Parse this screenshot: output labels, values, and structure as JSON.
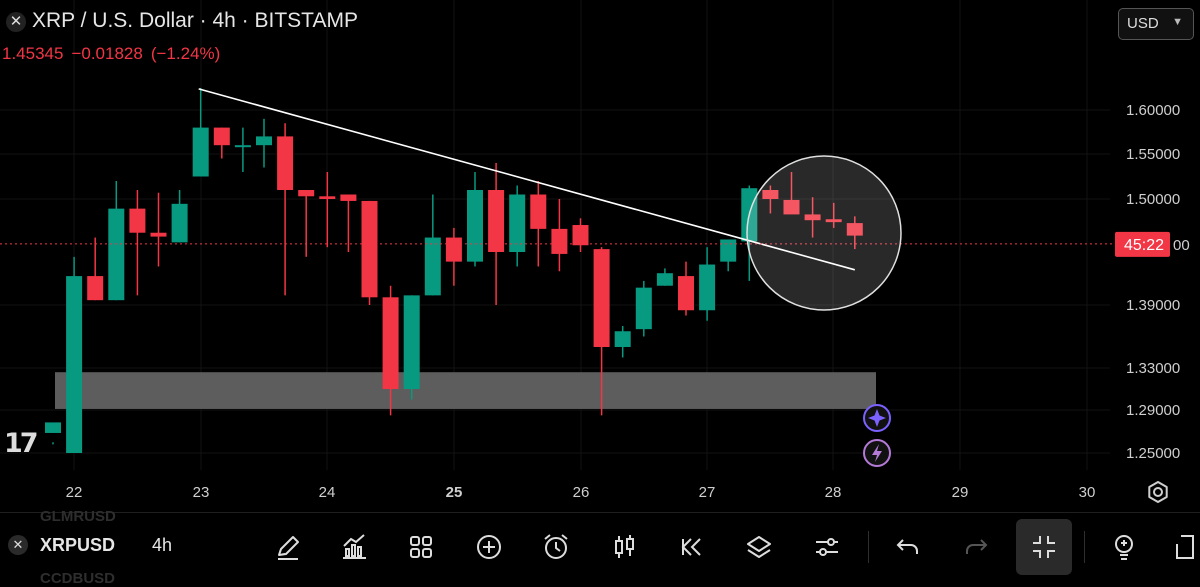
{
  "header": {
    "title": "XRP / U.S. Dollar · 4h · BITSTAMP",
    "price": "1.45345",
    "change": "−0.01828",
    "change_pct": "(−1.24%)",
    "currency": "USD"
  },
  "chart_data": {
    "type": "candlestick",
    "y_ticks": [
      "1.60000",
      "1.55000",
      "1.50000",
      "1.39000",
      "1.33000",
      "1.29000",
      "1.25000"
    ],
    "x_ticks": [
      "22",
      "23",
      "24",
      "25",
      "26",
      "27",
      "28",
      "29",
      "30"
    ],
    "current_label": "45:22",
    "current_price": 1.45345,
    "candles": [
      {
        "o": 1.233,
        "h": 1.26,
        "l": 1.22,
        "c": 1.245
      },
      {
        "o": 1.25,
        "h": 1.44,
        "l": 1.25,
        "c": 1.42
      },
      {
        "o": 1.42,
        "h": 1.46,
        "l": 1.395,
        "c": 1.395
      },
      {
        "o": 1.395,
        "h": 1.52,
        "l": 1.395,
        "c": 1.49
      },
      {
        "o": 1.49,
        "h": 1.51,
        "l": 1.4,
        "c": 1.465
      },
      {
        "o": 1.465,
        "h": 1.507,
        "l": 1.43,
        "c": 1.461
      },
      {
        "o": 1.455,
        "h": 1.51,
        "l": 1.455,
        "c": 1.495
      },
      {
        "o": 1.525,
        "h": 1.625,
        "l": 1.525,
        "c": 1.58
      },
      {
        "o": 1.58,
        "h": 1.58,
        "l": 1.545,
        "c": 1.56
      },
      {
        "o": 1.56,
        "h": 1.58,
        "l": 1.53,
        "c": 1.56
      },
      {
        "o": 1.56,
        "h": 1.59,
        "l": 1.535,
        "c": 1.57
      },
      {
        "o": 1.57,
        "h": 1.585,
        "l": 1.4,
        "c": 1.51
      },
      {
        "o": 1.51,
        "h": 1.51,
        "l": 1.44,
        "c": 1.503
      },
      {
        "o": 1.503,
        "h": 1.53,
        "l": 1.45,
        "c": 1.5
      },
      {
        "o": 1.505,
        "h": 1.505,
        "l": 1.445,
        "c": 1.498
      },
      {
        "o": 1.498,
        "h": 1.498,
        "l": 1.39,
        "c": 1.398
      },
      {
        "o": 1.398,
        "h": 1.41,
        "l": 1.285,
        "c": 1.31
      },
      {
        "o": 1.31,
        "h": 1.4,
        "l": 1.3,
        "c": 1.4
      },
      {
        "o": 1.4,
        "h": 1.505,
        "l": 1.4,
        "c": 1.46
      },
      {
        "o": 1.46,
        "h": 1.47,
        "l": 1.41,
        "c": 1.435
      },
      {
        "o": 1.435,
        "h": 1.53,
        "l": 1.43,
        "c": 1.51
      },
      {
        "o": 1.51,
        "h": 1.54,
        "l": 1.39,
        "c": 1.445
      },
      {
        "o": 1.445,
        "h": 1.515,
        "l": 1.43,
        "c": 1.505
      },
      {
        "o": 1.505,
        "h": 1.52,
        "l": 1.43,
        "c": 1.469
      },
      {
        "o": 1.469,
        "h": 1.5,
        "l": 1.425,
        "c": 1.443
      },
      {
        "o": 1.473,
        "h": 1.48,
        "l": 1.445,
        "c": 1.452
      },
      {
        "o": 1.448,
        "h": 1.45,
        "l": 1.285,
        "c": 1.35
      },
      {
        "o": 1.35,
        "h": 1.37,
        "l": 1.34,
        "c": 1.365
      },
      {
        "o": 1.367,
        "h": 1.415,
        "l": 1.36,
        "c": 1.408
      },
      {
        "o": 1.41,
        "h": 1.428,
        "l": 1.41,
        "c": 1.423
      },
      {
        "o": 1.42,
        "h": 1.435,
        "l": 1.38,
        "c": 1.385
      },
      {
        "o": 1.385,
        "h": 1.45,
        "l": 1.375,
        "c": 1.432
      },
      {
        "o": 1.435,
        "h": 1.458,
        "l": 1.425,
        "c": 1.458
      },
      {
        "o": 1.456,
        "h": 1.515,
        "l": 1.415,
        "c": 1.512
      },
      {
        "o": 1.51,
        "h": 1.515,
        "l": 1.485,
        "c": 1.5
      },
      {
        "o": 1.499,
        "h": 1.53,
        "l": 1.485,
        "c": 1.484
      },
      {
        "o": 1.484,
        "h": 1.502,
        "l": 1.46,
        "c": 1.478
      },
      {
        "o": 1.479,
        "h": 1.496,
        "l": 1.47,
        "c": 1.476
      },
      {
        "o": 1.475,
        "h": 1.482,
        "l": 1.448,
        "c": 1.462
      }
    ],
    "support_zone": {
      "top": 1.326,
      "bottom": 1.291
    },
    "trendline": {
      "from_candle": 7,
      "from_price": 1.624,
      "to_candle": 38,
      "to_price": 1.4265
    }
  },
  "bottombar": {
    "symbol": "XRPUSD",
    "timeframe": "4h",
    "ghost_top": "GLMRUSD",
    "ghost_bottom": "CCDBUSD"
  },
  "colors": {
    "up": "#089981",
    "down": "#f23645",
    "accent": "#7b61ff"
  },
  "icons": [
    "pencil-icon",
    "indicators-icon",
    "grid-icon",
    "plus-icon",
    "alarm-icon",
    "candles-icon",
    "replay-icon",
    "layers-icon",
    "sliders-icon",
    "undo-icon",
    "redo-icon",
    "collapse-icon",
    "idea-icon",
    "share-icon",
    "gear-icon",
    "star-icon",
    "flash-icon"
  ]
}
